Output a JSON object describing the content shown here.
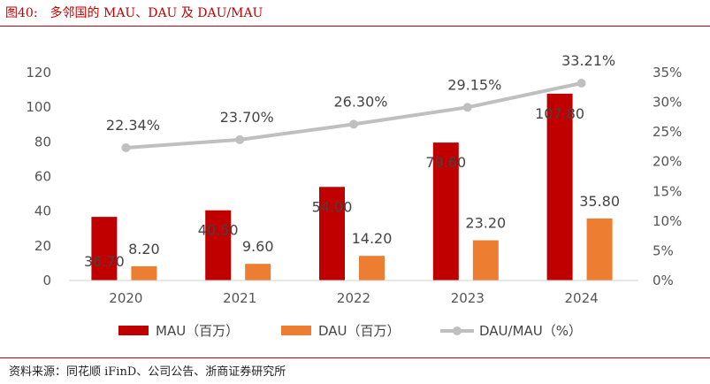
{
  "figure": {
    "number": "图40:",
    "title": "多邻国的 MAU、DAU 及 DAU/MAU"
  },
  "source": "资料来源：同花顺 iFinD、公司公告、浙商证券研究所",
  "colors": {
    "accent": "#c00000",
    "mau": "#c00000",
    "dau": "#ed7d31",
    "ratio": "#bfbfbf"
  },
  "chart_data": {
    "type": "bar",
    "categories": [
      "2020",
      "2021",
      "2022",
      "2023",
      "2024"
    ],
    "series": [
      {
        "name": "MAU（百万）",
        "kind": "bar",
        "axis": "left",
        "color": "#c00000",
        "values": [
          36.7,
          40.5,
          54.0,
          79.6,
          107.8
        ],
        "labels": [
          "36.70",
          "40.50",
          "54.00",
          "79.60",
          "107.80"
        ]
      },
      {
        "name": "DAU（百万）",
        "kind": "bar",
        "axis": "left",
        "color": "#ed7d31",
        "values": [
          8.2,
          9.6,
          14.2,
          23.2,
          35.8
        ],
        "labels": [
          "8.20",
          "9.60",
          "14.20",
          "23.20",
          "35.80"
        ]
      },
      {
        "name": "DAU/MAU（%）",
        "kind": "line",
        "axis": "right",
        "color": "#bfbfbf",
        "values": [
          22.34,
          23.7,
          26.3,
          29.15,
          33.21
        ],
        "labels": [
          "22.34%",
          "23.70%",
          "26.30%",
          "29.15%",
          "33.21%"
        ]
      }
    ],
    "y_left": {
      "min": 0,
      "max": 120,
      "ticks": [
        "0",
        "20",
        "40",
        "60",
        "80",
        "100",
        "120"
      ]
    },
    "y_right": {
      "min": 0,
      "max": 35,
      "ticks": [
        "0%",
        "5%",
        "10%",
        "15%",
        "20%",
        "25%",
        "30%",
        "35%"
      ]
    },
    "legend": "bottom",
    "grid": false
  }
}
